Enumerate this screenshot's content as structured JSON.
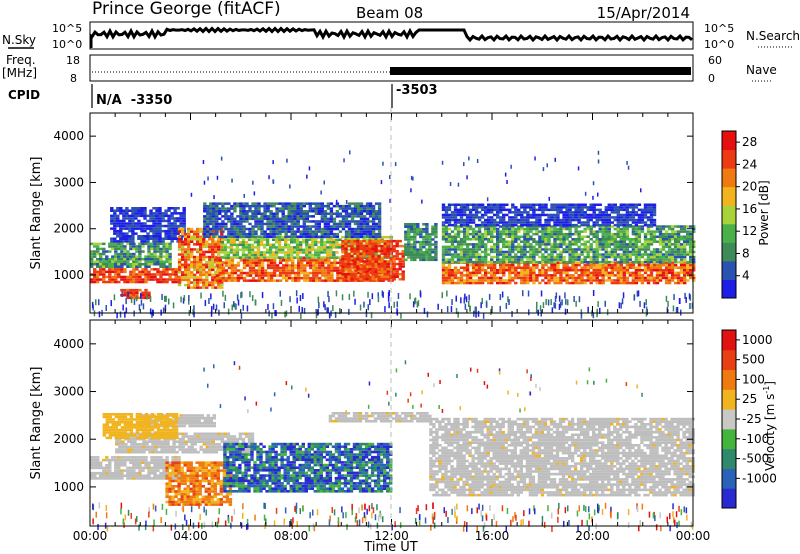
{
  "header": {
    "title": "Prince George (fitACF)",
    "beam": "Beam 08",
    "date": "15/Apr/2014"
  },
  "status_rows": {
    "nsky": {
      "label": "N.Sky",
      "ticks": [
        "10^5",
        "10^0"
      ]
    },
    "nsearch": {
      "label": "N.Search",
      "ticks": [
        "10^5",
        "10^0"
      ]
    },
    "freq": {
      "label_top": "Freq.",
      "label_bottom": "[MHz]",
      "ticks": [
        "18",
        "8"
      ]
    },
    "nave": {
      "label": "Nave",
      "ticks": [
        "60",
        "0"
      ]
    },
    "cpid": {
      "label": "CPID",
      "first": "N/A  -3350",
      "second": "-3503"
    }
  },
  "chart_data": [
    {
      "type": "heatmap",
      "name": "power",
      "ylabel": "Slant Range [km]",
      "xlabel": "",
      "ylim": [
        180,
        4500
      ],
      "xlim": [
        0,
        24
      ],
      "y_ticks": [
        "4000",
        "3000",
        "2000",
        "1000"
      ],
      "y_tick_values": [
        4000,
        3000,
        2000,
        1000
      ],
      "colorbar": {
        "label": "Power [dB]",
        "range": [
          0,
          30
        ],
        "tick_values": [
          28,
          24,
          20,
          16,
          12,
          8,
          4
        ],
        "tick_labels": [
          "28",
          "24",
          "20",
          "16",
          "12",
          "8",
          "4"
        ]
      }
    },
    {
      "type": "heatmap",
      "name": "velocity",
      "ylabel": "Slant Range [km]",
      "xlabel": "Time UT",
      "ylim": [
        180,
        4500
      ],
      "xlim": [
        0,
        24
      ],
      "y_ticks": [
        "4000",
        "3000",
        "2000",
        "1000"
      ],
      "y_tick_values": [
        4000,
        3000,
        2000,
        1000
      ],
      "x_ticks": [
        "00:00",
        "04:00",
        "08:00",
        "12:00",
        "16:00",
        "20:00",
        "00:00"
      ],
      "colorbar": {
        "label": "Velocity [m s",
        "label_sup": "-1",
        "label_end": "]",
        "tick_labels": [
          "1000",
          "500",
          "100",
          "25",
          "-25",
          "-100",
          "-500",
          "-1000"
        ]
      }
    }
  ],
  "colors": {
    "power_scale": [
      "#1e1ee6",
      "#2a52b0",
      "#3e8a58",
      "#49b04a",
      "#a8d23a",
      "#f2b41e",
      "#f07a10",
      "#ee3a12",
      "#e61010"
    ],
    "velocity_scale": [
      "#2a2ad2",
      "#2a62b8",
      "#2e8a6a",
      "#43b43c",
      "#c8c8c4",
      "#f2b41e",
      "#f07a10",
      "#e84012",
      "#e21212"
    ],
    "ground_scatter": "#bebebe"
  }
}
